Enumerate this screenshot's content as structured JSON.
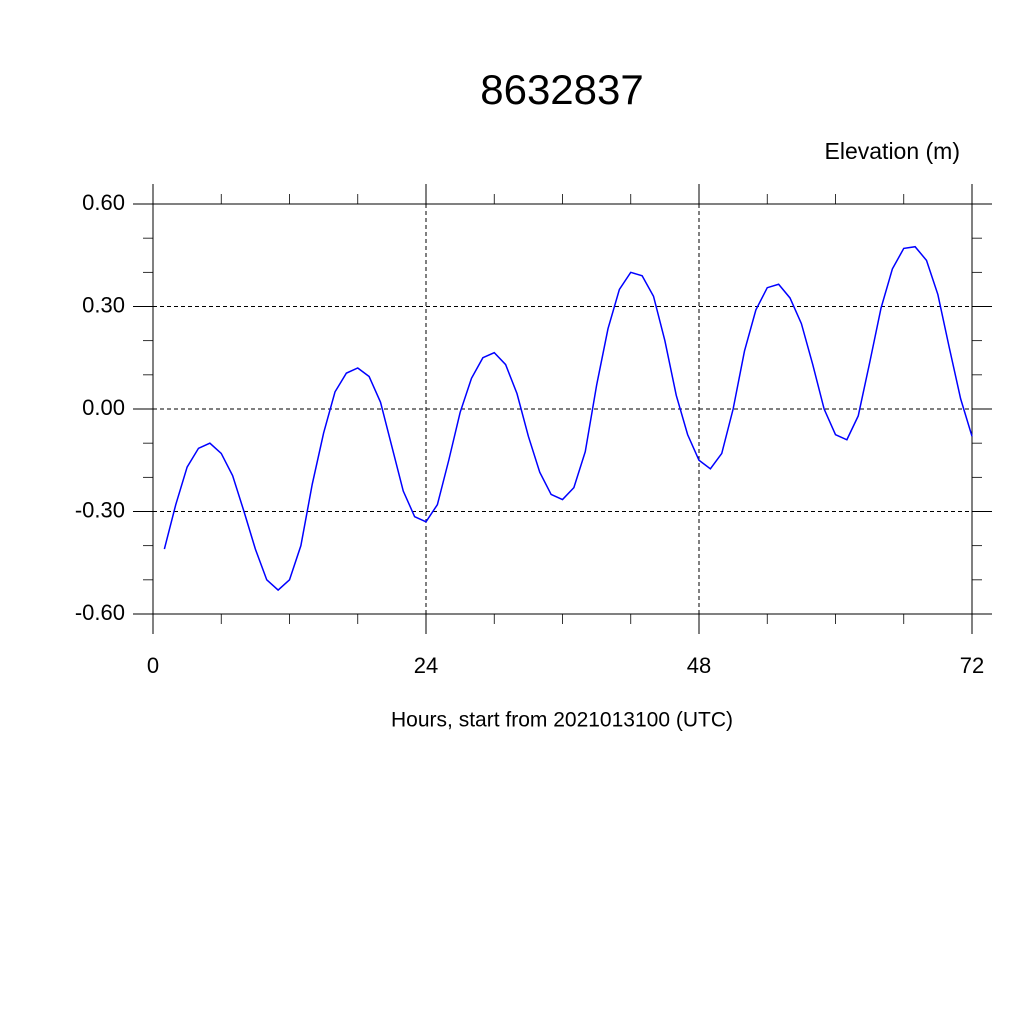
{
  "chart_data": {
    "type": "line",
    "title": "8632837",
    "subtitle": "Elevation (m)",
    "x_label": "Hours, start from 2021013100 (UTC)",
    "x": [
      1,
      2,
      3,
      4,
      5,
      6,
      7,
      8,
      9,
      10,
      11,
      12,
      13,
      14,
      15,
      16,
      17,
      18,
      19,
      20,
      21,
      22,
      23,
      24,
      25,
      26,
      27,
      28,
      29,
      30,
      31,
      32,
      33,
      34,
      35,
      36,
      37,
      38,
      39,
      40,
      41,
      42,
      43,
      44,
      45,
      46,
      47,
      48,
      49,
      50,
      51,
      52,
      53,
      54,
      55,
      56,
      57,
      58,
      59,
      60,
      61,
      62,
      63,
      64,
      65,
      66,
      67,
      68,
      69,
      70,
      71,
      72
    ],
    "series": [
      {
        "name": "Elevation",
        "color": "#0000ff",
        "values": [
          -0.41,
          -0.28,
          -0.17,
          -0.115,
          -0.1,
          -0.13,
          -0.195,
          -0.3,
          -0.41,
          -0.5,
          -0.53,
          -0.5,
          -0.4,
          -0.22,
          -0.07,
          0.05,
          0.105,
          0.12,
          0.095,
          0.02,
          -0.11,
          -0.24,
          -0.315,
          -0.33,
          -0.28,
          -0.15,
          -0.01,
          0.09,
          0.15,
          0.165,
          0.13,
          0.045,
          -0.08,
          -0.185,
          -0.25,
          -0.265,
          -0.23,
          -0.125,
          0.07,
          0.235,
          0.35,
          0.4,
          0.39,
          0.33,
          0.2,
          0.04,
          -0.075,
          -0.15,
          -0.175,
          -0.13,
          0.0,
          0.17,
          0.29,
          0.355,
          0.365,
          0.325,
          0.25,
          0.13,
          0.0,
          -0.075,
          -0.09,
          -0.02,
          0.135,
          0.295,
          0.41,
          0.47,
          0.475,
          0.435,
          0.335,
          0.18,
          0.03,
          -0.08
        ]
      }
    ],
    "xlim": [
      0,
      72
    ],
    "xticks": [
      0,
      24,
      48,
      72
    ],
    "ylim": [
      -0.6,
      0.6
    ],
    "yticks": [
      {
        "value": -0.6,
        "label": "-0.60"
      },
      {
        "value": -0.3,
        "label": "-0.30"
      },
      {
        "value": 0,
        "label": "0.00"
      },
      {
        "value": 0.3,
        "label": "0.30"
      },
      {
        "value": 0.6,
        "label": "0.60"
      }
    ],
    "x_minor_ticks": [
      6,
      12,
      18,
      30,
      36,
      42,
      54,
      60,
      66
    ],
    "y_minor_ticks": [
      -0.5,
      -0.4,
      -0.2,
      -0.1,
      0.1,
      0.2,
      0.4,
      0.5
    ],
    "grid": true
  }
}
